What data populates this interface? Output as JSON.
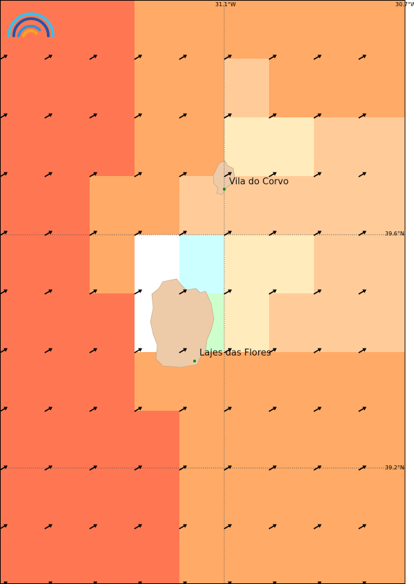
{
  "colors": {
    "R": "#FF7752",
    "O": "#FFAA66",
    "L": "#FFCC99",
    "Y": "#FFEBBB",
    "W": "#FFFFFF",
    "C": "#CCFFFF",
    "G": "#CCFFCC",
    "land": "#EECBA8",
    "town_dot": "#118811"
  },
  "grid": [
    "RRROOOOOO",
    "RRROOLOOO",
    "RRROOYYLL",
    "RROOLLLLL",
    "RROWCYYLL",
    "RRRWGYLLL",
    "RRROOOOOO",
    "RRRROOOOO",
    "RRRROOOOO",
    "RRRROOOOO"
  ],
  "wind_arrow_direction": "north-east",
  "axes": {
    "lon_labels": [
      "31.1°W",
      "30.7°W"
    ],
    "lat_labels": [
      "39.6°N",
      "39.2°N"
    ]
  },
  "towns": [
    {
      "name": "Vila do Corvo"
    },
    {
      "name": "Lajes das Flores"
    }
  ],
  "logo": "rainbow-arc-logo"
}
